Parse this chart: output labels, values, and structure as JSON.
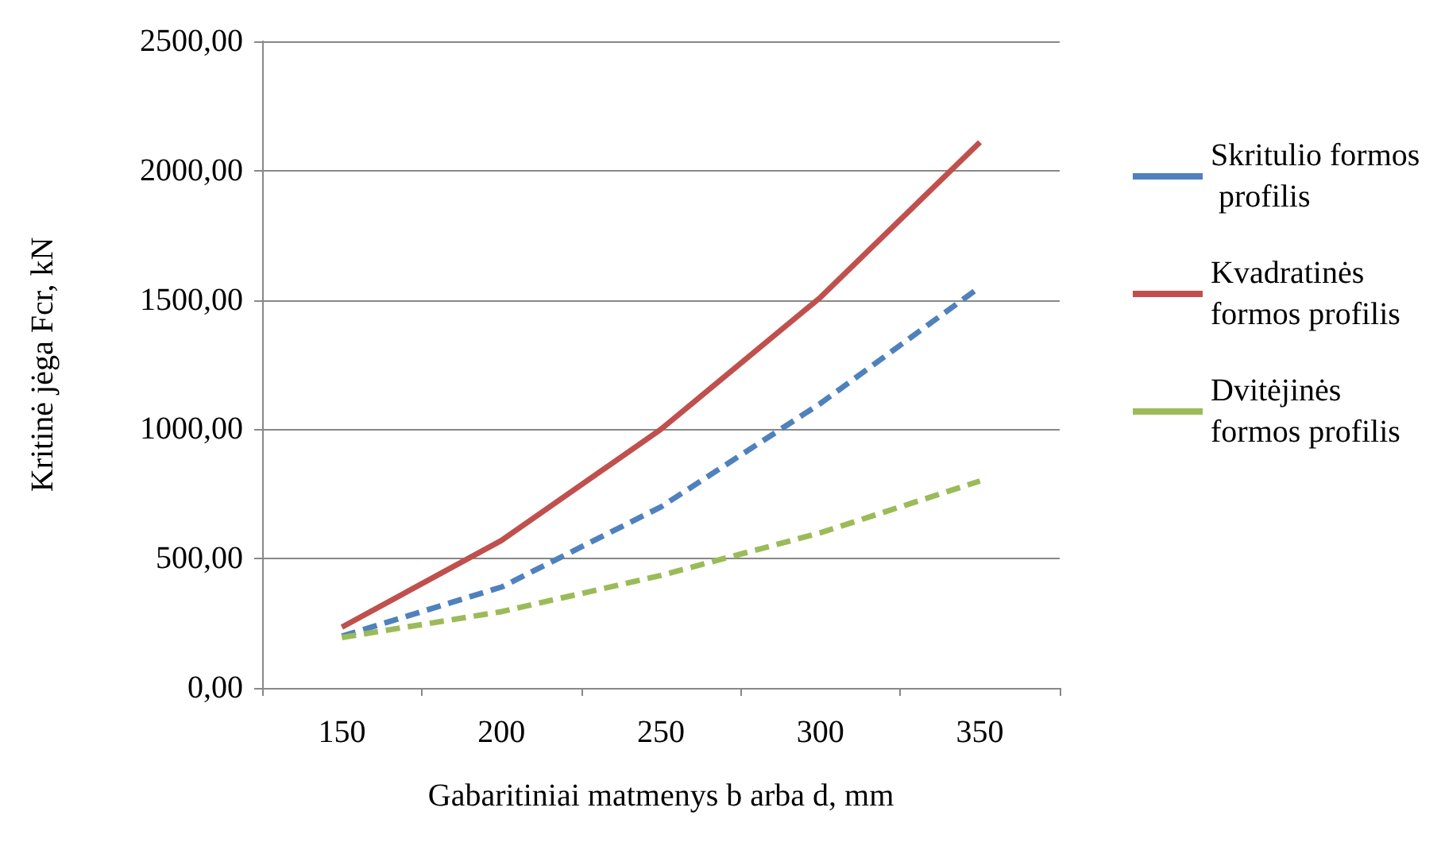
{
  "chart_data": {
    "type": "line",
    "xlabel": "Gabaritiniai matmenys b arba d, mm",
    "ylabel": "Kritinė jėga Fcr, kN",
    "categories": [
      "150",
      "200",
      "250",
      "300",
      "350"
    ],
    "series": [
      {
        "name": "Skritulio formos profilis",
        "color": "#4f81bd",
        "line_style": "dashed",
        "values": [
          200,
          390,
          700,
          1100,
          1550
        ]
      },
      {
        "name": "Kvadratinės formos profilis",
        "color": "#c0504d",
        "line_style": "solid",
        "values": [
          235,
          570,
          1000,
          1510,
          2110
        ]
      },
      {
        "name": "Dvitėjinės formos profilis",
        "color": "#9bbb59",
        "line_style": "dashed",
        "values": [
          195,
          295,
          435,
          600,
          800
        ]
      }
    ],
    "ylim": [
      0,
      2500
    ],
    "yticks": [
      {
        "value": 0,
        "label": "0,00"
      },
      {
        "value": 500,
        "label": "500,00"
      },
      {
        "value": 1000,
        "label": "1000,00"
      },
      {
        "value": 1500,
        "label": "1500,00"
      },
      {
        "value": 2000,
        "label": "2000,00"
      },
      {
        "value": 2500,
        "label": "2500,00"
      }
    ],
    "grid": "y",
    "legend": "right",
    "marker": "none"
  }
}
